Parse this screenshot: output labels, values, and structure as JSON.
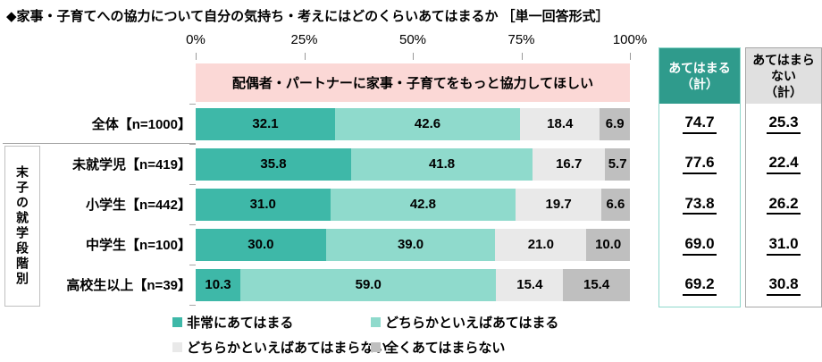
{
  "title": "◆家事・子育てへの協力について自分の気持ち・考えにはどのくらいあてはまるか ［単一回答形式］",
  "banner": "配偶者・パートナーに家事・子育てをもっと協力してほしい",
  "group_label": "末子の就学段階別",
  "axis_ticks": [
    "0%",
    "25%",
    "50%",
    "75%",
    "100%"
  ],
  "summary": {
    "agree": {
      "label": "あてはまる\n（計）",
      "values": [
        74.7,
        77.6,
        73.8,
        69.0,
        69.2
      ],
      "header_bg": "#2F9B8C",
      "header_text": "#FFFFFF",
      "border": "#8FD8CC"
    },
    "disagree": {
      "label": "あてはまら\nない\n（計）",
      "values": [
        25.3,
        22.4,
        26.2,
        31.0,
        30.8
      ],
      "header_bg": "#E0E0E0",
      "header_text": "#000000",
      "border": "#A6A6A6"
    }
  },
  "chart_data": {
    "type": "bar",
    "orientation": "horizontal",
    "stacked": true,
    "xlim": [
      0,
      100
    ],
    "banner_color": "#FBD8D6",
    "legend_position": "bottom",
    "categories": [
      "全体【n=1000】",
      "未就学児【n=419】",
      "小学生【n=442】",
      "中学生【n=100】",
      "高校生以上【n=39】"
    ],
    "series": [
      {
        "name": "非常にあてはまる",
        "color": "#3EB8A8",
        "values": [
          32.1,
          35.8,
          31.0,
          30.0,
          10.3
        ]
      },
      {
        "name": "どちらかといえばあてはまる",
        "color": "#8FDACC",
        "values": [
          42.6,
          41.8,
          42.8,
          39.0,
          59.0
        ]
      },
      {
        "name": "どちらかといえばあてはまらない",
        "color": "#E9E9E9",
        "values": [
          18.4,
          16.7,
          19.7,
          21.0,
          15.4
        ]
      },
      {
        "name": "全くあてはまらない",
        "color": "#BFBFBF",
        "values": [
          6.9,
          5.7,
          6.6,
          10.0,
          15.4
        ]
      }
    ]
  }
}
